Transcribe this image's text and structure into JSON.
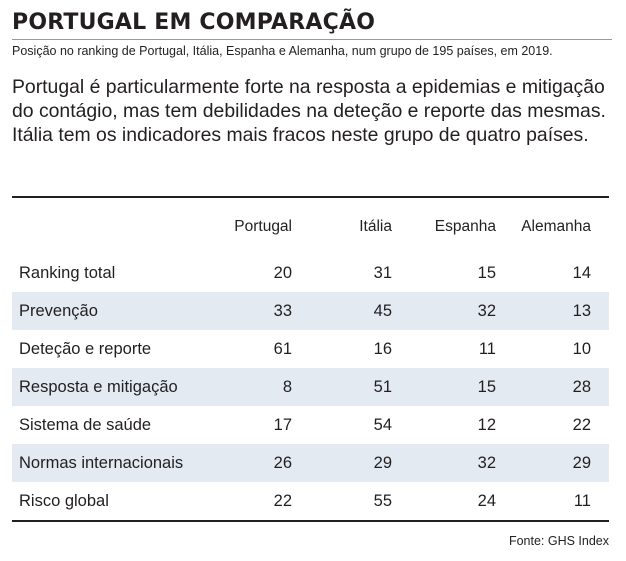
{
  "header": {
    "title": "PORTUGAL EM COMPARAÇÃO",
    "subtitle": "Posição no ranking de Portugal, Itália, Espanha e Alemanha, num grupo de 195 países, em 2019."
  },
  "lead": {
    "line1": "Portugal é particularmente forte na resposta a epidemias e mitigação",
    "line2": "do contágio, mas tem debilidades na deteção e reporte das mesmas.",
    "line3": "Itália tem os indicadores mais fracos neste grupo de quatro países."
  },
  "chart_data": {
    "type": "table",
    "columns": [
      "Portugal",
      "Itália",
      "Espanha",
      "Alemanha"
    ],
    "rows": [
      {
        "label": "Ranking total",
        "values": [
          20,
          31,
          15,
          14
        ]
      },
      {
        "label": "Prevenção",
        "values": [
          33,
          45,
          32,
          13
        ]
      },
      {
        "label": "Deteção e reporte",
        "values": [
          61,
          16,
          11,
          10
        ]
      },
      {
        "label": "Resposta e mitigação",
        "values": [
          8,
          51,
          15,
          28
        ]
      },
      {
        "label": "Sistema de saúde",
        "values": [
          17,
          54,
          12,
          22
        ]
      },
      {
        "label": "Normas internacionais",
        "values": [
          26,
          29,
          32,
          29
        ]
      },
      {
        "label": "Risco global",
        "values": [
          22,
          55,
          24,
          11
        ]
      }
    ],
    "shaded_row_color": "#e3eaf1"
  },
  "footer": {
    "source": "Fonte: GHS Index"
  }
}
